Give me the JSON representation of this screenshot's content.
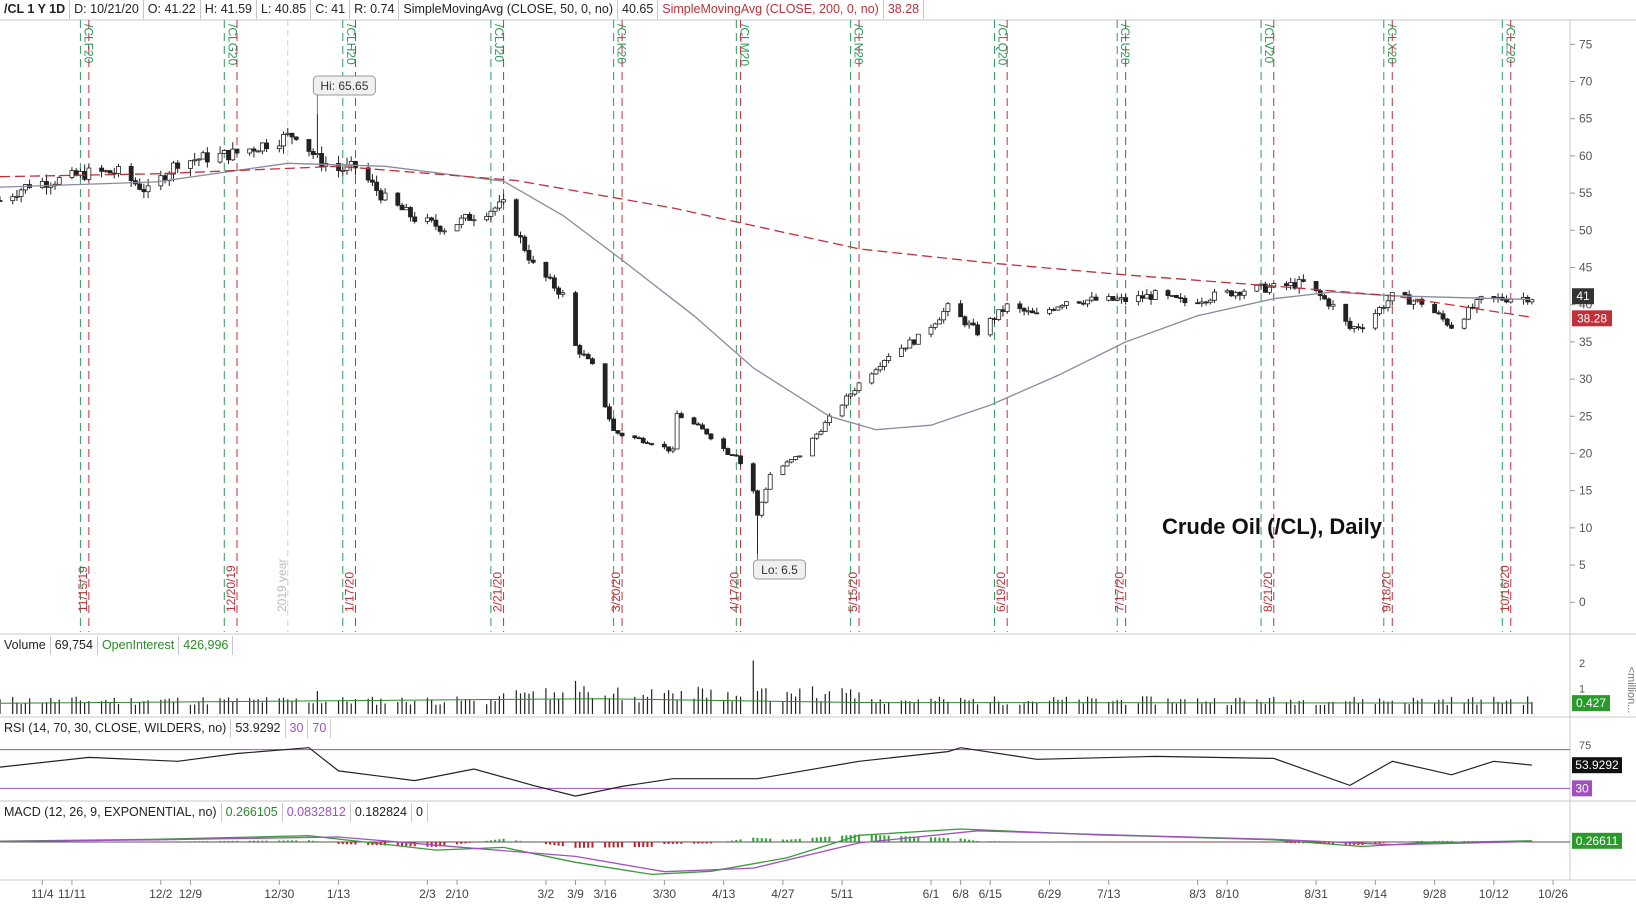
{
  "header": {
    "symbol": "/CL 1 Y 1D",
    "date": "D: 10/21/20",
    "open": "O: 41.22",
    "high": "H: 41.59",
    "low": "L: 40.85",
    "close": "C: 41",
    "range": "R: 0.74",
    "sma50_label": "SimpleMovingAvg (CLOSE, 50, 0, no)",
    "sma50_value": "40.65",
    "sma200_label": "SimpleMovingAvg (CLOSE, 200, 0, no)",
    "sma200_value": "38.28"
  },
  "volume_header": {
    "label": "Volume",
    "value": "69,754",
    "oi_label": "OpenInterest",
    "oi_value": "426,996"
  },
  "rsi_header": {
    "label": "RSI (14, 70, 30, CLOSE, WILDERS, no)",
    "value": "53.9292",
    "low_level": "30",
    "high_level": "70"
  },
  "macd_header": {
    "label": "MACD (12, 26, 9, EXPONENTIAL, no)",
    "value": "0.266105",
    "avg": "0.0832812",
    "diff": "0.182824",
    "zero": "0"
  },
  "annotations": {
    "title": "Crude Oil (/CL), Daily",
    "hi_label": "Hi: 65.65",
    "lo_label": "Lo: 6.5",
    "year_marker": "2019 year",
    "last_price": "41",
    "sma_tag": "38.28",
    "vol_tag": "0.427",
    "vol_unit": "<million...",
    "rsi_tag": "53.9292",
    "rsi_level_tag": "30",
    "macd_tag": "0.26611"
  },
  "colors": {
    "up_candle": "#ffffff",
    "down_candle": "#222222",
    "sma50": "#8a8aa0",
    "sma200": "#c0303a",
    "contract_roll": "#2e9a5a",
    "expiration": "#c0303a",
    "rsi_line": "#222222",
    "rsi_levels": "#a050c0",
    "macd_line": "#3a9a3a",
    "macd_signal": "#a050c0"
  },
  "chart_data": {
    "type": "candlestick",
    "title": "Crude Oil (/CL), Daily",
    "yticks": [
      0,
      5,
      10,
      15,
      20,
      25,
      30,
      35,
      40,
      45,
      50,
      55,
      60,
      65,
      70,
      75
    ],
    "ylim": [
      -4,
      78
    ],
    "xlim": [
      "2019-10-25",
      "2020-10-30"
    ],
    "xticks": [
      {
        "date": "2019-11-04",
        "label": "11/4"
      },
      {
        "date": "2019-11-11",
        "label": "11/11"
      },
      {
        "date": "2019-12-02",
        "label": "12/2"
      },
      {
        "date": "2019-12-09",
        "label": "12/9"
      },
      {
        "date": "2019-12-30",
        "label": "12/30"
      },
      {
        "date": "2020-01-13",
        "label": "1/13"
      },
      {
        "date": "2020-02-03",
        "label": "2/3"
      },
      {
        "date": "2020-02-10",
        "label": "2/10"
      },
      {
        "date": "2020-03-02",
        "label": "3/2"
      },
      {
        "date": "2020-03-09",
        "label": "3/9"
      },
      {
        "date": "2020-03-16",
        "label": "3/16"
      },
      {
        "date": "2020-03-30",
        "label": "3/30"
      },
      {
        "date": "2020-04-13",
        "label": "4/13"
      },
      {
        "date": "2020-04-27",
        "label": "4/27"
      },
      {
        "date": "2020-05-11",
        "label": "5/11"
      },
      {
        "date": "2020-06-01",
        "label": "6/1"
      },
      {
        "date": "2020-06-08",
        "label": "6/8"
      },
      {
        "date": "2020-06-15",
        "label": "6/15"
      },
      {
        "date": "2020-06-29",
        "label": "6/29"
      },
      {
        "date": "2020-07-13",
        "label": "7/13"
      },
      {
        "date": "2020-08-03",
        "label": "8/3"
      },
      {
        "date": "2020-08-10",
        "label": "8/10"
      },
      {
        "date": "2020-08-31",
        "label": "8/31"
      },
      {
        "date": "2020-09-14",
        "label": "9/14"
      },
      {
        "date": "2020-09-28",
        "label": "9/28"
      },
      {
        "date": "2020-10-12",
        "label": "10/12"
      },
      {
        "date": "2020-10-26",
        "label": "10/26"
      }
    ],
    "contract_rolls": [
      {
        "date": "2019-11-13",
        "label": "/CLF20"
      },
      {
        "date": "2019-12-17",
        "label": "/CLG20"
      },
      {
        "date": "2020-01-14",
        "label": "/CLH20"
      },
      {
        "date": "2020-02-18",
        "label": "/CLJ20"
      },
      {
        "date": "2020-03-18",
        "label": "/CLK20"
      },
      {
        "date": "2020-04-16",
        "label": "/CLM20"
      },
      {
        "date": "2020-05-13",
        "label": "/CLN20"
      },
      {
        "date": "2020-06-16",
        "label": "/CLQ20"
      },
      {
        "date": "2020-07-15",
        "label": "/CLU20"
      },
      {
        "date": "2020-08-18",
        "label": "/CLV20"
      },
      {
        "date": "2020-09-16",
        "label": "/CLX20"
      },
      {
        "date": "2020-10-14",
        "label": "/CLZ20"
      }
    ],
    "expirations": [
      {
        "date": "2019-11-15",
        "label": "11/15/19"
      },
      {
        "date": "2019-12-20",
        "label": "12/20/19"
      },
      {
        "date": "2020-01-17",
        "label": "1/17/20"
      },
      {
        "date": "2020-02-21",
        "label": "2/21/20"
      },
      {
        "date": "2020-03-20",
        "label": "3/20/20"
      },
      {
        "date": "2020-04-17",
        "label": "4/17/20"
      },
      {
        "date": "2020-05-15",
        "label": "5/15/20"
      },
      {
        "date": "2020-06-19",
        "label": "6/19/20"
      },
      {
        "date": "2020-07-17",
        "label": "7/17/20"
      },
      {
        "date": "2020-08-21",
        "label": "8/21/20"
      },
      {
        "date": "2020-09-18",
        "label": "9/18/20"
      },
      {
        "date": "2020-10-16",
        "label": "10/16/20"
      }
    ],
    "close_path": [
      [
        "2019-10-25",
        54.0
      ],
      [
        "2019-11-01",
        56.2
      ],
      [
        "2019-11-08",
        56.8
      ],
      [
        "2019-11-15",
        57.7
      ],
      [
        "2019-11-22",
        57.8
      ],
      [
        "2019-11-29",
        55.2
      ],
      [
        "2019-12-06",
        59.2
      ],
      [
        "2019-12-13",
        59.8
      ],
      [
        "2019-12-20",
        60.4
      ],
      [
        "2019-12-27",
        61.7
      ],
      [
        "2020-01-03",
        63.0
      ],
      [
        "2020-01-08",
        59.6
      ],
      [
        "2020-01-13",
        58.1
      ],
      [
        "2020-01-17",
        58.5
      ],
      [
        "2020-01-24",
        54.2
      ],
      [
        "2020-01-31",
        51.6
      ],
      [
        "2020-02-07",
        50.3
      ],
      [
        "2020-02-14",
        52.0
      ],
      [
        "2020-02-21",
        53.4
      ],
      [
        "2020-02-28",
        45.3
      ],
      [
        "2020-03-06",
        41.3
      ],
      [
        "2020-03-09",
        34.4
      ],
      [
        "2020-03-13",
        31.7
      ],
      [
        "2020-03-18",
        23.0
      ],
      [
        "2020-03-20",
        22.5
      ],
      [
        "2020-03-27",
        21.5
      ],
      [
        "2020-04-01",
        20.3
      ],
      [
        "2020-04-02",
        25.3
      ],
      [
        "2020-04-09",
        22.8
      ],
      [
        "2020-04-14",
        20.1
      ],
      [
        "2020-04-16",
        19.9
      ],
      [
        "2020-04-20",
        15.0
      ],
      [
        "2020-04-21",
        11.6
      ],
      [
        "2020-04-24",
        17.2
      ],
      [
        "2020-05-01",
        19.8
      ],
      [
        "2020-05-08",
        24.7
      ],
      [
        "2020-05-15",
        29.4
      ],
      [
        "2020-05-22",
        33.3
      ],
      [
        "2020-05-29",
        35.5
      ],
      [
        "2020-06-05",
        39.6
      ],
      [
        "2020-06-12",
        36.3
      ],
      [
        "2020-06-19",
        39.8
      ],
      [
        "2020-06-26",
        38.5
      ],
      [
        "2020-07-03",
        40.6
      ],
      [
        "2020-07-10",
        40.6
      ],
      [
        "2020-07-17",
        40.6
      ],
      [
        "2020-07-24",
        41.3
      ],
      [
        "2020-07-31",
        40.3
      ],
      [
        "2020-08-07",
        41.2
      ],
      [
        "2020-08-14",
        42.0
      ],
      [
        "2020-08-21",
        42.3
      ],
      [
        "2020-08-28",
        42.9
      ],
      [
        "2020-09-04",
        39.8
      ],
      [
        "2020-09-08",
        36.8
      ],
      [
        "2020-09-11",
        37.3
      ],
      [
        "2020-09-18",
        41.1
      ],
      [
        "2020-09-25",
        40.3
      ],
      [
        "2020-10-02",
        37.1
      ],
      [
        "2020-10-09",
        40.6
      ],
      [
        "2020-10-16",
        40.9
      ],
      [
        "2020-10-21",
        41.0
      ]
    ],
    "sma50": [
      [
        "2019-10-25",
        55.8
      ],
      [
        "2019-12-01",
        56.5
      ],
      [
        "2020-01-01",
        59.0
      ],
      [
        "2020-01-24",
        58.6
      ],
      [
        "2020-02-21",
        56.6
      ],
      [
        "2020-03-06",
        52.0
      ],
      [
        "2020-03-20",
        46.0
      ],
      [
        "2020-04-06",
        38.5
      ],
      [
        "2020-04-20",
        31.5
      ],
      [
        "2020-05-08",
        25.0
      ],
      [
        "2020-05-19",
        23.2
      ],
      [
        "2020-06-01",
        23.8
      ],
      [
        "2020-06-15",
        26.5
      ],
      [
        "2020-07-01",
        30.5
      ],
      [
        "2020-07-17",
        35.0
      ],
      [
        "2020-08-03",
        38.5
      ],
      [
        "2020-08-21",
        40.8
      ],
      [
        "2020-09-04",
        41.7
      ],
      [
        "2020-09-18",
        41.2
      ],
      [
        "2020-10-21",
        40.7
      ]
    ],
    "sma200": [
      [
        "2019-10-25",
        57.2
      ],
      [
        "2019-12-01",
        57.6
      ],
      [
        "2020-01-13",
        58.6
      ],
      [
        "2020-02-24",
        56.7
      ],
      [
        "2020-04-01",
        53.0
      ],
      [
        "2020-05-15",
        47.5
      ],
      [
        "2020-06-15",
        45.6
      ],
      [
        "2020-07-17",
        44.0
      ],
      [
        "2020-08-21",
        42.5
      ],
      [
        "2020-09-18",
        41.2
      ],
      [
        "2020-10-21",
        38.3
      ]
    ],
    "high": {
      "date": "2020-01-08",
      "value": 65.65
    },
    "low": {
      "date": "2020-04-21",
      "value": 6.5
    },
    "volume_panel": {
      "unit": "million",
      "yticks": [
        2,
        1
      ],
      "ylim": [
        0,
        2.2
      ],
      "last": 0.427,
      "spikes": [
        {
          "date": "2020-03-09",
          "value": 1.3
        },
        {
          "date": "2020-04-20",
          "value": 2.1
        },
        {
          "date": "2020-04-22",
          "value": 1.0
        },
        {
          "date": "2020-01-08",
          "value": 0.9
        }
      ]
    },
    "rsi_panel": {
      "levels": [
        30,
        70
      ],
      "tick": 75,
      "ylim": [
        20,
        80
      ],
      "last": 53.9292,
      "path": [
        [
          "2019-10-25",
          52
        ],
        [
          "2019-11-15",
          62
        ],
        [
          "2019-12-06",
          58
        ],
        [
          "2019-12-20",
          66
        ],
        [
          "2020-01-06",
          72
        ],
        [
          "2020-01-13",
          48
        ],
        [
          "2020-01-31",
          38
        ],
        [
          "2020-02-14",
          50
        ],
        [
          "2020-02-28",
          33
        ],
        [
          "2020-03-09",
          22
        ],
        [
          "2020-03-20",
          32
        ],
        [
          "2020-04-01",
          40
        ],
        [
          "2020-04-21",
          40
        ],
        [
          "2020-05-15",
          58
        ],
        [
          "2020-06-05",
          68
        ],
        [
          "2020-06-08",
          72
        ],
        [
          "2020-06-26",
          60
        ],
        [
          "2020-07-24",
          63
        ],
        [
          "2020-08-21",
          61
        ],
        [
          "2020-09-08",
          33
        ],
        [
          "2020-09-18",
          58
        ],
        [
          "2020-10-02",
          44
        ],
        [
          "2020-10-12",
          58
        ],
        [
          "2020-10-21",
          54
        ]
      ]
    },
    "macd_panel": {
      "last": 0.26611,
      "ylim": [
        -8,
        4
      ],
      "macd": [
        [
          "2019-10-25",
          0.2
        ],
        [
          "2019-12-01",
          0.6
        ],
        [
          "2020-01-06",
          1.4
        ],
        [
          "2020-02-05",
          -1.8
        ],
        [
          "2020-02-21",
          -1.2
        ],
        [
          "2020-03-09",
          -4.5
        ],
        [
          "2020-03-27",
          -7.2
        ],
        [
          "2020-04-10",
          -6.5
        ],
        [
          "2020-04-28",
          -3.5
        ],
        [
          "2020-05-15",
          1.5
        ],
        [
          "2020-06-08",
          2.9
        ],
        [
          "2020-07-10",
          1.6
        ],
        [
          "2020-08-21",
          0.5
        ],
        [
          "2020-09-11",
          -1.0
        ],
        [
          "2020-09-25",
          -0.2
        ],
        [
          "2020-10-21",
          0.27
        ]
      ],
      "signal": [
        [
          "2019-10-25",
          0.1
        ],
        [
          "2019-12-01",
          0.5
        ],
        [
          "2020-01-13",
          1.1
        ],
        [
          "2020-02-14",
          -1.4
        ],
        [
          "2020-03-09",
          -3.2
        ],
        [
          "2020-03-30",
          -6.6
        ],
        [
          "2020-04-20",
          -5.8
        ],
        [
          "2020-05-15",
          -0.2
        ],
        [
          "2020-06-12",
          2.5
        ],
        [
          "2020-07-17",
          1.5
        ],
        [
          "2020-08-21",
          0.6
        ],
        [
          "2020-09-18",
          -0.6
        ],
        [
          "2020-10-21",
          0.08
        ]
      ]
    }
  }
}
